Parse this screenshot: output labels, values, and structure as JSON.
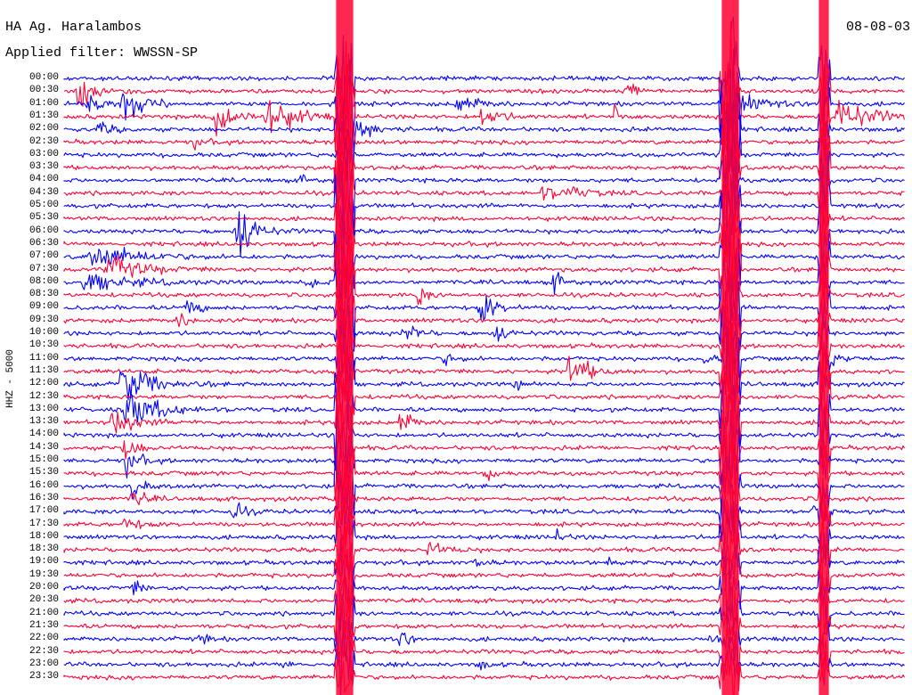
{
  "header": {
    "station": "HA Ag. Haralambos",
    "filter": "Applied filter: WWSSN-SP",
    "date": "08-08-03"
  },
  "chart_data": {
    "type": "line",
    "title": "HA Ag. Haralambos",
    "subtitle": "Applied filter: WWSSN-SP",
    "ylabel": "HHZ - 5000",
    "xlabel": "",
    "row_labels": [
      "00:00",
      "00:30",
      "01:00",
      "01:30",
      "02:00",
      "02:30",
      "03:00",
      "03:30",
      "04:00",
      "04:30",
      "05:00",
      "05:30",
      "06:00",
      "06:30",
      "07:00",
      "07:30",
      "08:00",
      "08:30",
      "09:00",
      "09:30",
      "10:00",
      "10:30",
      "11:00",
      "11:30",
      "12:00",
      "12:30",
      "13:00",
      "13:30",
      "14:00",
      "14:30",
      "15:00",
      "15:30",
      "16:00",
      "16:30",
      "17:00",
      "17:30",
      "18:00",
      "18:30",
      "19:00",
      "19:30",
      "20:00",
      "20:30",
      "21:00",
      "21:30",
      "22:00",
      "22:30",
      "23:00",
      "23:30"
    ],
    "colors": {
      "even_rows": "#0000ff",
      "odd_rows": "#ff0033"
    },
    "grid": false,
    "legend": "none"
  }
}
